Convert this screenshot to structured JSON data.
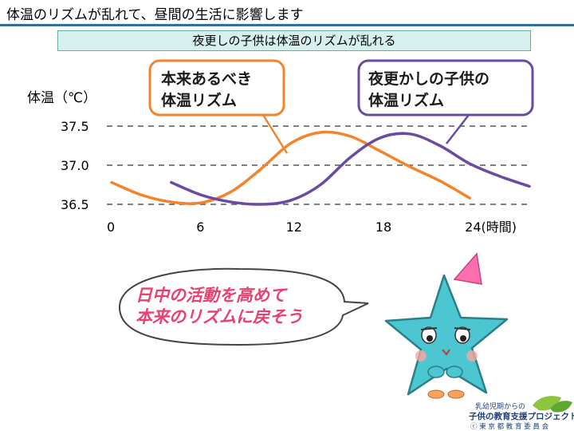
{
  "header": {
    "title": "体温のリズムが乱れて、昼間の生活に影響します",
    "subtitle": "夜更しの子供は体温のリズムが乱れる"
  },
  "chart_data": {
    "type": "line",
    "ylabel": "体温（℃）",
    "x_ticks": [
      "0",
      "6",
      "12",
      "18",
      "24(時間)"
    ],
    "y_ticks": [
      "37.5",
      "37.0",
      "36.5"
    ],
    "xlim": [
      0,
      28
    ],
    "ylim": [
      36.5,
      37.5
    ],
    "grid": "horizontal-dashed",
    "series": [
      {
        "label_lines": [
          "本来あるべき",
          "体温リズム"
        ],
        "color": "#f5832b",
        "x": [
          0,
          2,
          4,
          6,
          8,
          10,
          12,
          14,
          16,
          18,
          20,
          22,
          24
        ],
        "y": [
          36.78,
          36.62,
          36.53,
          36.52,
          36.66,
          36.95,
          37.28,
          37.42,
          37.37,
          37.18,
          36.98,
          36.8,
          36.58
        ]
      },
      {
        "label_lines": [
          "夜更かしの子供の",
          "体温リズム"
        ],
        "color": "#6a4ba1",
        "x": [
          4,
          6,
          8,
          10,
          12,
          14,
          16,
          18,
          20,
          22,
          24,
          26,
          28
        ],
        "y": [
          36.78,
          36.62,
          36.53,
          36.5,
          36.55,
          36.75,
          37.1,
          37.35,
          37.4,
          37.25,
          37.02,
          36.86,
          36.73
        ]
      }
    ]
  },
  "speech_bubble": {
    "lines": [
      "日中の活動を高めて",
      "本来のリズムに戻そう"
    ]
  },
  "logo": {
    "line1": "乳幼児期からの",
    "line2": "子供の教育支援プロジェクト",
    "line3": "ⓒ 東 京 都 教 育 委 員 会"
  }
}
